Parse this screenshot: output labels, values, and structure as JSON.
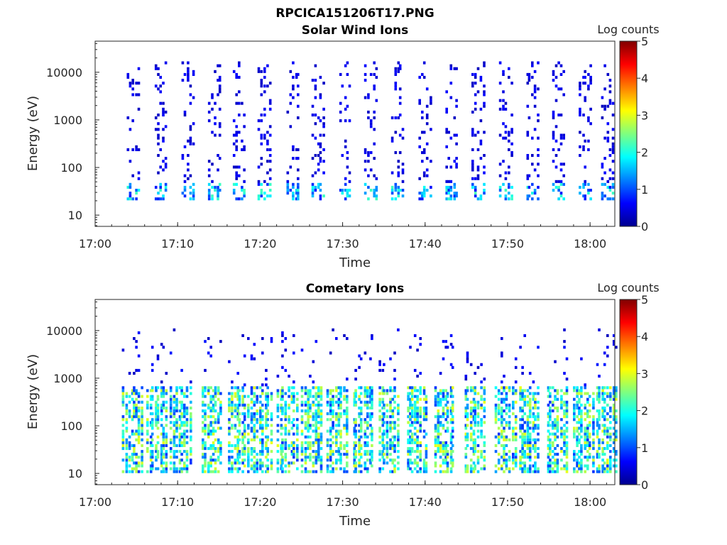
{
  "figure_title": "RPCICA151206T17.PNG",
  "chart_data": [
    {
      "type": "heatmap",
      "title": "Solar Wind Ions",
      "xlabel": "Time",
      "ylabel": "Energy (eV)",
      "x_ticks": [
        "17:00",
        "17:10",
        "17:20",
        "17:30",
        "17:40",
        "17:50",
        "18:00"
      ],
      "xlim": [
        "17:00",
        "18:03"
      ],
      "y_ticks": [
        "10",
        "100",
        "1000",
        "10000"
      ],
      "y_scale": "log",
      "ylim": [
        5.8,
        45000
      ],
      "colorbar": {
        "label": "Log counts",
        "ticks": [
          "0",
          "1",
          "2",
          "3",
          "4",
          "5"
        ],
        "range": [
          0,
          5
        ],
        "colormap": "jet"
      },
      "sweep_times_min": [
        4.6,
        8.0,
        11.2,
        14.5,
        17.4,
        20.5,
        24.0,
        27.0,
        30.3,
        33.5,
        36.7,
        40.0,
        43.2,
        46.5,
        49.8,
        53.0,
        56.2,
        59.5,
        62.2
      ],
      "populations": [
        {
          "energy_range_ev": [
            18,
            45
          ],
          "peak_log_counts": 2.2
        },
        {
          "energy_range_ev": [
            45,
            15000
          ],
          "peak_log_counts": 0.4
        }
      ]
    },
    {
      "type": "heatmap",
      "title": "Cometary Ions",
      "xlabel": "Time",
      "ylabel": "Energy (eV)",
      "x_ticks": [
        "17:00",
        "17:10",
        "17:20",
        "17:30",
        "17:40",
        "17:50",
        "18:00"
      ],
      "xlim": [
        "17:00",
        "18:03"
      ],
      "y_ticks": [
        "10",
        "100",
        "1000",
        "10000"
      ],
      "y_scale": "log",
      "ylim": [
        5.8,
        45000
      ],
      "colorbar": {
        "label": "Log counts",
        "ticks": [
          "0",
          "1",
          "2",
          "3",
          "4",
          "5"
        ],
        "range": [
          0,
          5
        ],
        "colormap": "jet"
      },
      "sweep_times_min": [
        4.6,
        7.5,
        10.4,
        14.2,
        17.4,
        20.2,
        23.3,
        26.3,
        29.4,
        32.5,
        35.6,
        39.0,
        42.3,
        46.0,
        49.8,
        52.6,
        56.0,
        59.2,
        62.0
      ],
      "populations": [
        {
          "energy_range_ev": [
            10,
            600
          ],
          "peak_log_counts": 3.1
        },
        {
          "energy_range_ev": [
            600,
            10000
          ],
          "peak_log_counts": 0.5
        }
      ]
    }
  ]
}
